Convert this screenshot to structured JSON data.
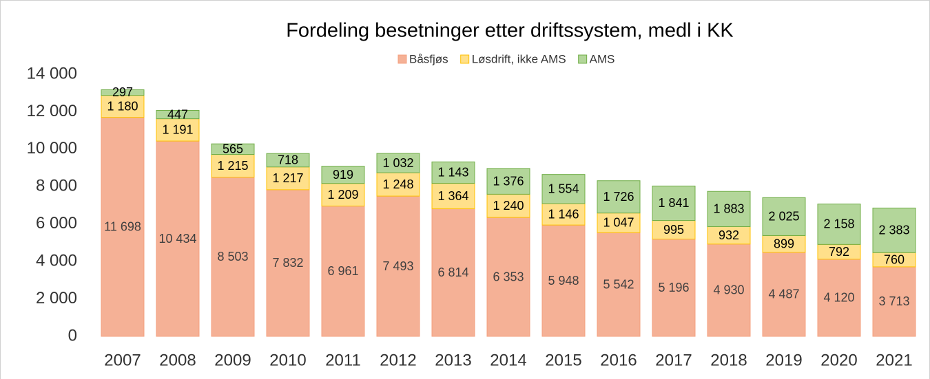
{
  "chart_data": {
    "type": "stacked_bar",
    "title": "Fordeling besetninger etter driftssystem, medl i KK",
    "categories": [
      "2007",
      "2008",
      "2009",
      "2010",
      "2011",
      "2012",
      "2013",
      "2014",
      "2015",
      "2016",
      "2017",
      "2018",
      "2019",
      "2020",
      "2021"
    ],
    "series": [
      {
        "name": "Båsfjøs",
        "color": "#f5b196",
        "stroke": "#f4a07f",
        "values": [
          11698,
          10434,
          8503,
          7832,
          6961,
          7493,
          6814,
          6353,
          5948,
          5542,
          5196,
          4930,
          4487,
          4120,
          3713
        ],
        "value_labels": [
          "11 698",
          "10 434",
          "8 503",
          "7 832",
          "6 961",
          "7 493",
          "6 814",
          "6 353",
          "5 948",
          "5 542",
          "5 196",
          "4 930",
          "4 487",
          "4 120",
          "3 713"
        ]
      },
      {
        "name": "Løsdrift, ikke AMS",
        "color": "#ffe08a",
        "stroke": "#ffc000",
        "values": [
          1180,
          1191,
          1215,
          1217,
          1209,
          1248,
          1364,
          1240,
          1146,
          1047,
          995,
          932,
          899,
          792,
          760
        ],
        "value_labels": [
          "1 180",
          "1 191",
          "1 215",
          "1 217",
          "1 209",
          "1 248",
          "1 364",
          "1 240",
          "1 146",
          "1 047",
          "995",
          "932",
          "899",
          "792",
          "760"
        ]
      },
      {
        "name": "AMS",
        "color": "#b3d69a",
        "stroke": "#70ad47",
        "values": [
          297,
          447,
          565,
          718,
          919,
          1032,
          1143,
          1376,
          1554,
          1726,
          1841,
          1883,
          2025,
          2158,
          2383
        ],
        "value_labels": [
          "297",
          "447",
          "565",
          "718",
          "919",
          "1 032",
          "1 143",
          "1 376",
          "1 554",
          "1 726",
          "1 841",
          "1 883",
          "2 025",
          "2 158",
          "2 383"
        ]
      }
    ],
    "ylim": [
      0,
      14000
    ],
    "yticks": [
      0,
      {
        "value": 2000,
        "label": "2 000"
      },
      {
        "value": 4000,
        "label": "4 000"
      },
      {
        "value": 6000,
        "label": "6 000"
      },
      {
        "value": 8000,
        "label": "8 000"
      },
      {
        "value": 10000,
        "label": "10 000"
      },
      {
        "value": 12000,
        "label": "12 000"
      },
      {
        "value": 14000,
        "label": "14 000"
      }
    ],
    "grid": false,
    "legend": "top"
  }
}
